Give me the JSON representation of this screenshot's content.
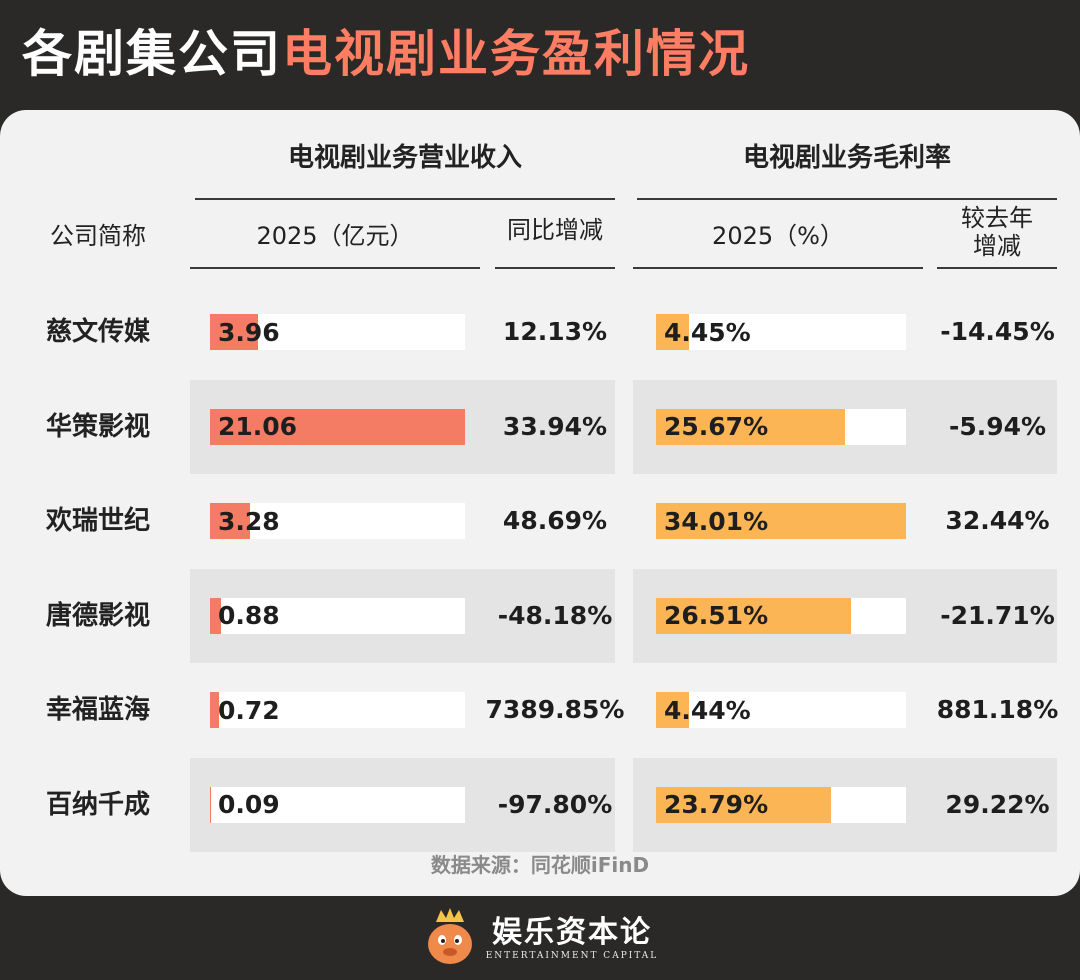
{
  "header": {
    "title_part1": "各剧集公司",
    "title_part2": "电视剧业务盈利情况"
  },
  "table": {
    "group_revenue": "电视剧业务营业收入",
    "group_margin": "电视剧业务毛利率",
    "col_company": "公司简称",
    "col_revenue": "2025（亿元）",
    "col_revenue_yoy": "同比增减",
    "col_margin": "2025（%）",
    "col_margin_change_line1": "较去年",
    "col_margin_change_line2": "增减"
  },
  "chart_data": {
    "type": "table",
    "revenue_unit": "亿元",
    "margin_unit": "%",
    "revenue_bar_max": 21.06,
    "margin_bar_max": 34.01,
    "rows": [
      {
        "company": "慈文传媒",
        "revenue": 3.96,
        "revenue_label": "3.96",
        "revenue_yoy": "12.13%",
        "margin": 4.45,
        "margin_label": "4.45%",
        "margin_change": "-14.45%"
      },
      {
        "company": "华策影视",
        "revenue": 21.06,
        "revenue_label": "21.06",
        "revenue_yoy": "33.94%",
        "margin": 25.67,
        "margin_label": "25.67%",
        "margin_change": "-5.94%"
      },
      {
        "company": "欢瑞世纪",
        "revenue": 3.28,
        "revenue_label": "3.28",
        "revenue_yoy": "48.69%",
        "margin": 34.01,
        "margin_label": "34.01%",
        "margin_change": "32.44%"
      },
      {
        "company": "唐德影视",
        "revenue": 0.88,
        "revenue_label": "0.88",
        "revenue_yoy": "-48.18%",
        "margin": 26.51,
        "margin_label": "26.51%",
        "margin_change": "-21.71%"
      },
      {
        "company": "幸福蓝海",
        "revenue": 0.72,
        "revenue_label": "0.72",
        "revenue_yoy": "7389.85%",
        "margin": 4.44,
        "margin_label": "4.44%",
        "margin_change": "881.18%"
      },
      {
        "company": "百纳千成",
        "revenue": 0.09,
        "revenue_label": "0.09",
        "revenue_yoy": "-97.80%",
        "margin": 23.79,
        "margin_label": "23.79%",
        "margin_change": "29.22%"
      }
    ]
  },
  "source": "数据来源：同花顺iFinD",
  "footer": {
    "logo_cn": "娱乐资本论",
    "logo_en": "ENTERTAINMENT CAPITAL"
  },
  "colors": {
    "revenue_bar": "#f47c64",
    "margin_bar": "#fbb554",
    "title_accent": "#ff7d62",
    "background": "#2b2927",
    "card": "#f2f2f2",
    "stripe": "#e4e4e4"
  }
}
